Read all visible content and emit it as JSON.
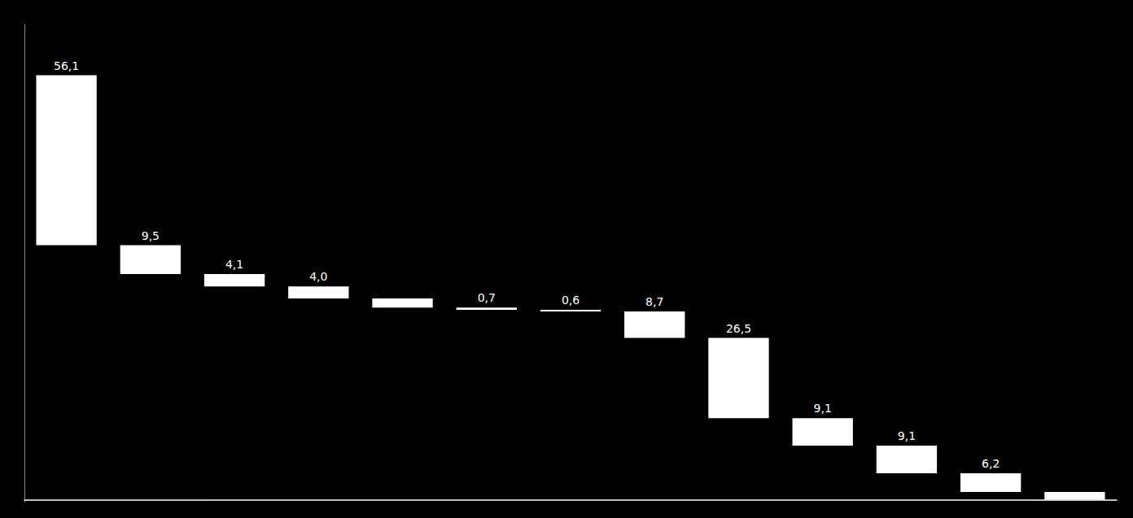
{
  "chart_data": {
    "type": "waterfall",
    "categories": [
      null,
      null,
      null,
      null,
      null,
      null,
      null,
      null,
      null,
      null,
      null,
      null,
      null
    ],
    "values": [
      56.1,
      9.5,
      4.1,
      4.0,
      3.0,
      0.7,
      0.6,
      8.7,
      26.5,
      9.1,
      9.1,
      6.2,
      2.5
    ],
    "value_labels": [
      "56,1",
      "9,5",
      "4,1",
      "4,0",
      null,
      "0,7",
      "0,6",
      "8,7",
      "26,5",
      "9,1",
      "9,1",
      "6,2",
      null
    ],
    "color": "#ffffff",
    "ylim": [
      -0.7005,
      156.912
    ],
    "data_labels": true,
    "tick_labels": false,
    "grid": false
  }
}
